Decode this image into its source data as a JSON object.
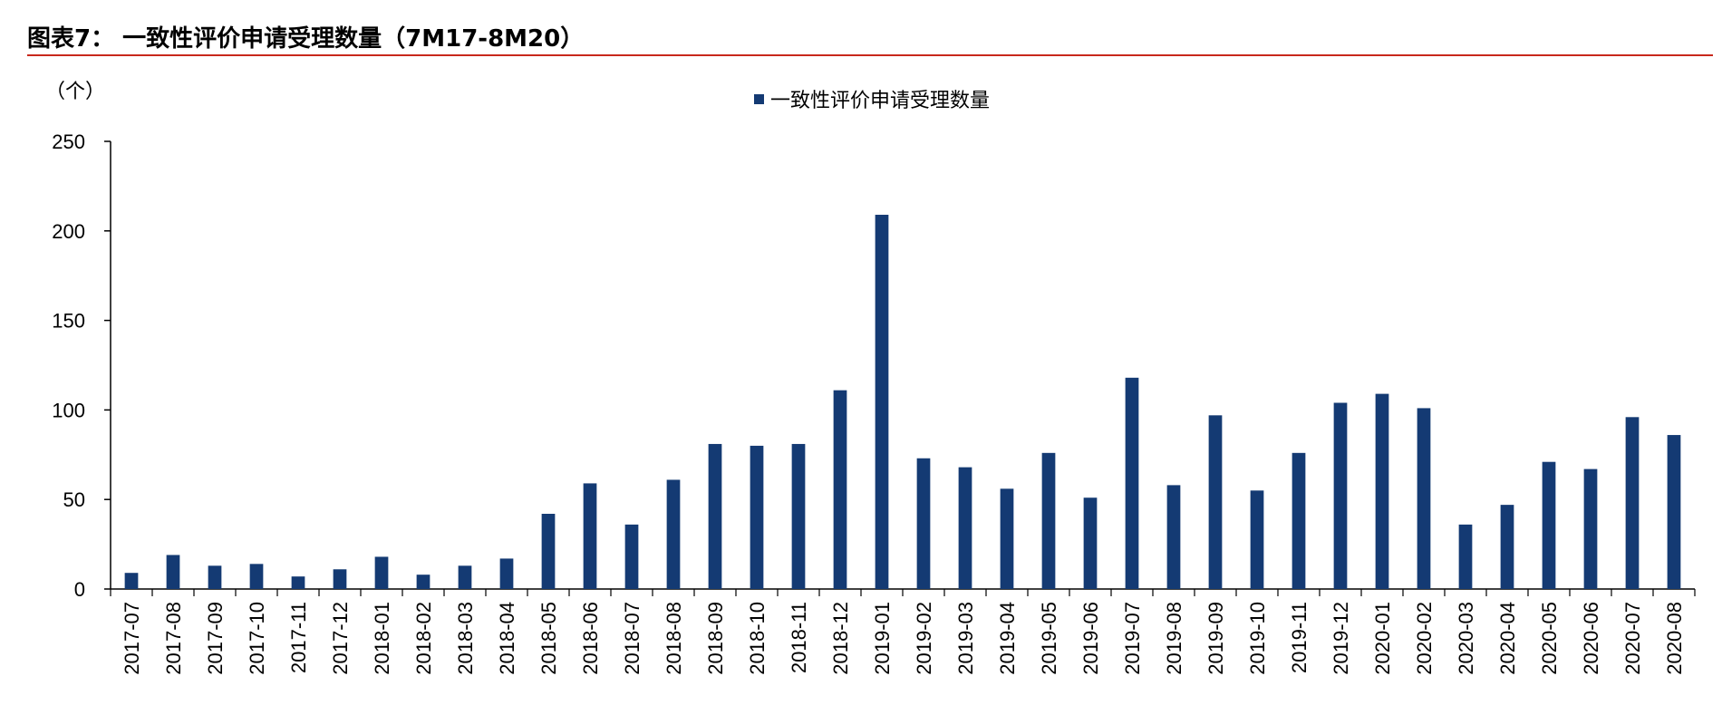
{
  "figure": {
    "title": "图表7：  一致性评价申请受理数量（7M17-8M20）"
  },
  "chart_data": {
    "type": "bar",
    "title": "",
    "unit_label": "（个）",
    "legend": "一致性评价申请受理数量",
    "legend_position": "top-center",
    "xlabel": "",
    "ylabel": "（个）",
    "ylim": [
      0,
      250
    ],
    "yticks": [
      0,
      50,
      100,
      150,
      200,
      250
    ],
    "grid": false,
    "bar_color": "#143a73",
    "categories": [
      "2017-07",
      "2017-08",
      "2017-09",
      "2017-10",
      "2017-11",
      "2017-12",
      "2018-01",
      "2018-02",
      "2018-03",
      "2018-04",
      "2018-05",
      "2018-06",
      "2018-07",
      "2018-08",
      "2018-09",
      "2018-10",
      "2018-11",
      "2018-12",
      "2019-01",
      "2019-02",
      "2019-03",
      "2019-04",
      "2019-05",
      "2019-06",
      "2019-07",
      "2019-08",
      "2019-09",
      "2019-10",
      "2019-11",
      "2019-12",
      "2020-01",
      "2020-02",
      "2020-03",
      "2020-04",
      "2020-05",
      "2020-06",
      "2020-07",
      "2020-08"
    ],
    "values": [
      9,
      19,
      13,
      14,
      7,
      11,
      18,
      8,
      13,
      17,
      42,
      59,
      36,
      61,
      81,
      80,
      81,
      111,
      209,
      73,
      68,
      56,
      76,
      51,
      118,
      58,
      97,
      55,
      76,
      104,
      109,
      101,
      36,
      47,
      71,
      67,
      96,
      86
    ]
  }
}
